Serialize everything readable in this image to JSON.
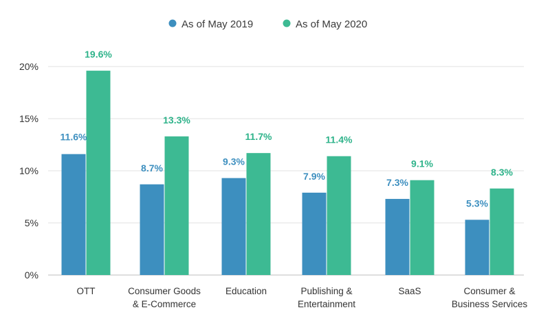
{
  "chart_data": {
    "type": "bar",
    "categories": [
      [
        "OTT"
      ],
      [
        "Consumer Goods",
        "& E-Commerce"
      ],
      [
        "Education"
      ],
      [
        "Publishing &",
        "Entertainment"
      ],
      [
        "SaaS"
      ],
      [
        "Consumer &",
        "Business Services"
      ]
    ],
    "series": [
      {
        "name": "As of May 2019",
        "color": "#3d8fbf",
        "label_color": "#3d8fbf",
        "values": [
          11.6,
          8.7,
          9.3,
          7.9,
          7.3,
          5.3
        ],
        "labels": [
          "11.6%",
          "8.7%",
          "9.3%",
          "7.9%",
          "7.3%",
          "5.3%"
        ]
      },
      {
        "name": "As of May 2020",
        "color": "#3dba93",
        "label_color": "#2eb38a",
        "values": [
          19.6,
          13.3,
          11.7,
          11.4,
          9.1,
          8.3
        ],
        "labels": [
          "19.6%",
          "13.3%",
          "11.7%",
          "11.4%",
          "9.1%",
          "8.3%"
        ]
      }
    ],
    "yticks": [
      "0%",
      "5%",
      "10%",
      "15%",
      "20%"
    ],
    "ylim": [
      0,
      20
    ],
    "grid": true,
    "legend_position": "top-center",
    "title": "",
    "xlabel": "",
    "ylabel": ""
  }
}
